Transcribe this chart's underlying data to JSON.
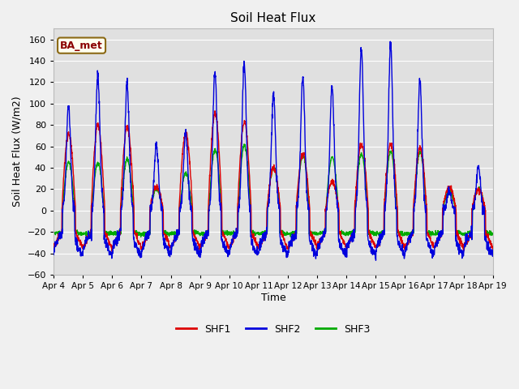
{
  "title": "Soil Heat Flux",
  "xlabel": "Time",
  "ylabel": "Soil Heat Flux (W/m2)",
  "ylim": [
    -60,
    170
  ],
  "yticks": [
    -60,
    -40,
    -20,
    0,
    20,
    40,
    60,
    80,
    100,
    120,
    140,
    160
  ],
  "n_days": 15,
  "points_per_day": 144,
  "colors": {
    "SHF1": "#dd0000",
    "SHF2": "#0000dd",
    "SHF3": "#00aa00"
  },
  "annotation": "BA_met",
  "line_width": 1.0,
  "xtick_labels": [
    "Apr 4",
    "Apr 5",
    "Apr 6",
    "Apr 7",
    "Apr 8",
    "Apr 9",
    "Apr 10",
    "Apr 11",
    "Apr 12",
    "Apr 13",
    "Apr 14",
    "Apr 15",
    "Apr 16",
    "Apr 17",
    "Apr 18",
    "Apr 19"
  ],
  "peaks_shf2": [
    97,
    128,
    119,
    62,
    73,
    130,
    139,
    109,
    125,
    117,
    152,
    156,
    121,
    20,
    42,
    0
  ],
  "peaks_shf1": [
    72,
    80,
    78,
    22,
    72,
    91,
    83,
    40,
    54,
    27,
    62,
    62,
    58,
    22,
    20,
    0
  ],
  "peaks_shf3": [
    45,
    44,
    48,
    20,
    35,
    57,
    61,
    40,
    52,
    50,
    53,
    55,
    55,
    18,
    20,
    0
  ],
  "shf2_night_min": -42,
  "shf1_night_level": -20,
  "shf3_night_level": -20,
  "shf2_sunrise": 0.3,
  "shf2_sunset": 0.72,
  "shf1_sunrise": 0.28,
  "shf1_sunset": 0.75,
  "shf3_sunrise": 0.3,
  "shf3_sunset": 0.73,
  "figsize": [
    6.4,
    4.8
  ],
  "dpi": 100
}
